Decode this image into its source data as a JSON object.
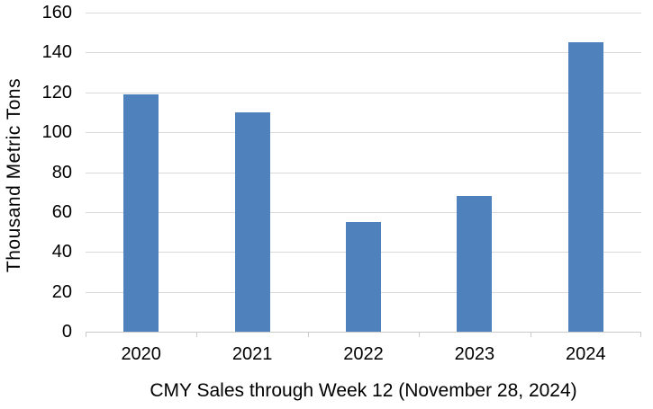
{
  "chart": {
    "title": "CMY Sales through Week 12 (November 28, 2024)",
    "y_axis_title": "Thousand Metric Tons"
  },
  "colors": {
    "bar": "#4f81bd",
    "gridline": "#d9d9d9",
    "axis_line": "#c9c9c9",
    "text": "#000000",
    "background": "#ffffff"
  },
  "chart_data": {
    "type": "bar",
    "categories": [
      "2020",
      "2021",
      "2022",
      "2023",
      "2024"
    ],
    "values": [
      119,
      110,
      55,
      68,
      145
    ],
    "title": "CMY Sales through Week 12 (November 28, 2024)",
    "title_position": "bottom",
    "xlabel": "",
    "ylabel": "Thousand Metric Tons",
    "ylim": [
      0,
      160
    ],
    "yticks": [
      0,
      20,
      40,
      60,
      80,
      100,
      120,
      140,
      160
    ],
    "grid": true,
    "legend": false
  }
}
